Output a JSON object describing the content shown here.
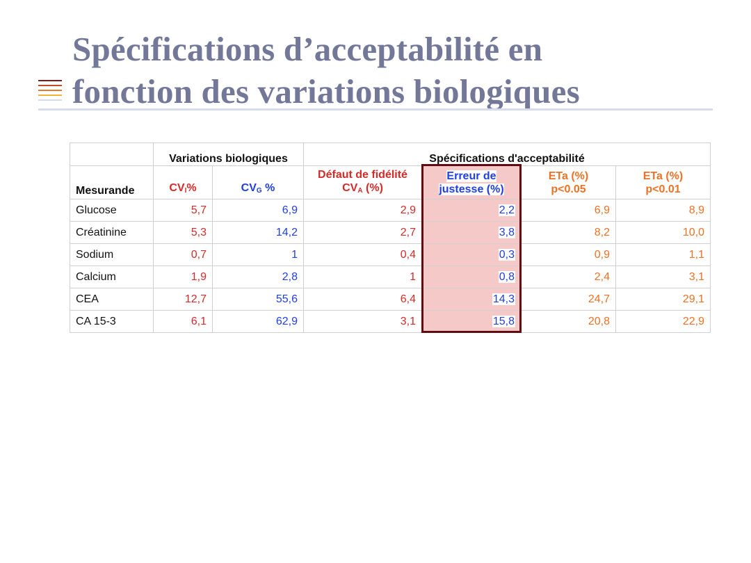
{
  "slide": {
    "title_line1": "Spécifications d’acceptabilité en",
    "title_line2": "fonction des variations biologiques",
    "deco_line_colors": [
      "#7a1a1a",
      "#c24a24",
      "#e57a2a",
      "#f1b23a",
      "#d7dced"
    ]
  },
  "table": {
    "group_headers": {
      "biological": "Variations biologiques",
      "acceptability": "Spécifications d'acceptabilité"
    },
    "columns": {
      "mesurande": "Mesurande",
      "cvi_main": "CV",
      "cvi_sub": "I",
      "cvi_suffix": "%",
      "cvg_main": "CV",
      "cvg_sub": "G",
      "cvg_suffix": " %",
      "fidelity_line1": "Défaut de fidélité",
      "fidelity_cv": "CV",
      "fidelity_sub": "A",
      "fidelity_suffix": " (%)",
      "bias_line1": "Erreur de",
      "bias_line2": "justesse (%)",
      "eta05_line1": "ETa (%)",
      "eta05_line2": "p<0.05",
      "eta01_line1": "ETa (%)",
      "eta01_line2": "p<0.01"
    },
    "rows": [
      {
        "name": "Glucose",
        "cvi": "5,7",
        "cvg": "6,9",
        "cva": "2,9",
        "bias": "2,2",
        "eta05": "6,9",
        "eta01": "8,9"
      },
      {
        "name": "Créatinine",
        "cvi": "5,3",
        "cvg": "14,2",
        "cva": "2,7",
        "bias": "3,8",
        "eta05": "8,2",
        "eta01": "10,0"
      },
      {
        "name": "Sodium",
        "cvi": "0,7",
        "cvg": "1",
        "cva": "0,4",
        "bias": "0,3",
        "eta05": "0,9",
        "eta01": "1,1"
      },
      {
        "name": "Calcium",
        "cvi": "1,9",
        "cvg": "2,8",
        "cva": "1",
        "bias": "0,8",
        "eta05": "2,4",
        "eta01": "3,1"
      },
      {
        "name": "CEA",
        "cvi": "12,7",
        "cvg": "55,6",
        "cva": "6,4",
        "bias": "14,3",
        "eta05": "24,7",
        "eta01": "29,1"
      },
      {
        "name": "CA 15-3",
        "cvi": "6,1",
        "cvg": "62,9",
        "cva": "3,1",
        "bias": "15,8",
        "eta05": "20,8",
        "eta01": "22,9"
      }
    ],
    "colors": {
      "cvi": "#d42a28",
      "cvg": "#1f3ee6",
      "cva": "#d42a28",
      "bias": "#1f3ee6",
      "eta": "#ee7124",
      "highlight_fill": "#f5c9c8",
      "highlight_border": "#5f0b10"
    }
  }
}
